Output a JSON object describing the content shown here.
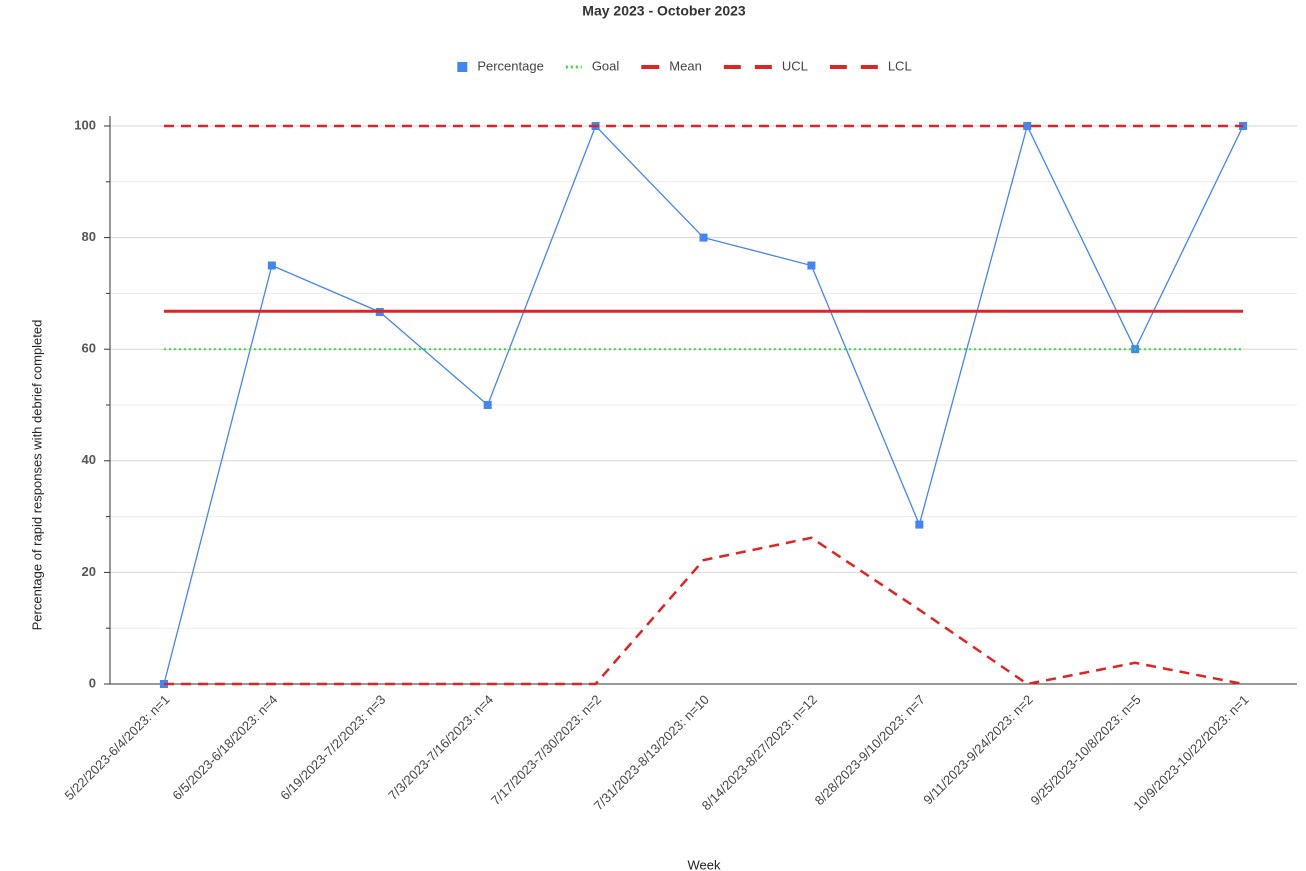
{
  "chart_data": {
    "type": "line",
    "title": "May 2023 - October 2023",
    "x_label": "Week",
    "y_label": "Percentage of rapid responses with debrief completed",
    "categories": [
      "5/22/2023-6/4/2023: n=1",
      "6/5/2023-6/18/2023: n=4",
      "6/19/2023-7/2/2023: n=3",
      "7/3/2023-7/16/2023: n=4",
      "7/17/2023-7/30/2023: n=2",
      "7/31/2023-8/13/2023: n=10",
      "8/14/2023-8/27/2023: n=12",
      "8/28/2023-9/10/2023: n=7",
      "9/11/2023-9/24/2023: n=2",
      "9/25/2023-10/8/2023: n=5",
      "10/9/2023-10/22/2023: n=1"
    ],
    "series": [
      {
        "name": "Percentage",
        "color": "#4285f4",
        "line_style": "solid",
        "line_width": 1.3,
        "marker": "square",
        "values": [
          0,
          75,
          66.67,
          50,
          100,
          80,
          75,
          28.57,
          100,
          60,
          100
        ]
      },
      {
        "name": "Goal",
        "color": "#33dd33",
        "line_style": "dotted",
        "line_width": 2,
        "values": [
          60,
          60,
          60,
          60,
          60,
          60,
          60,
          60,
          60,
          60,
          60
        ]
      },
      {
        "name": "Mean",
        "color": "#e02424",
        "line_style": "solid",
        "line_width": 3,
        "values": [
          66.8,
          66.8,
          66.8,
          66.8,
          66.8,
          66.8,
          66.8,
          66.8,
          66.8,
          66.8,
          66.8
        ]
      },
      {
        "name": "UCL",
        "color": "#e02424",
        "line_style": "dashed",
        "line_width": 2.5,
        "values": [
          100,
          100,
          100,
          100,
          100,
          100,
          100,
          100,
          100,
          100,
          100
        ]
      },
      {
        "name": "LCL",
        "color": "#e02424",
        "line_style": "dashed",
        "line_width": 2.5,
        "values": [
          0,
          0,
          0,
          0,
          0,
          22.2,
          26.2,
          13.3,
          0,
          3.8,
          0
        ]
      }
    ],
    "ylim": [
      0,
      100
    ],
    "yticks": [
      0,
      20,
      40,
      60,
      80,
      100
    ],
    "minor_yticks": [
      10,
      30,
      50,
      70,
      90
    ],
    "grid": true,
    "legend": "top"
  }
}
